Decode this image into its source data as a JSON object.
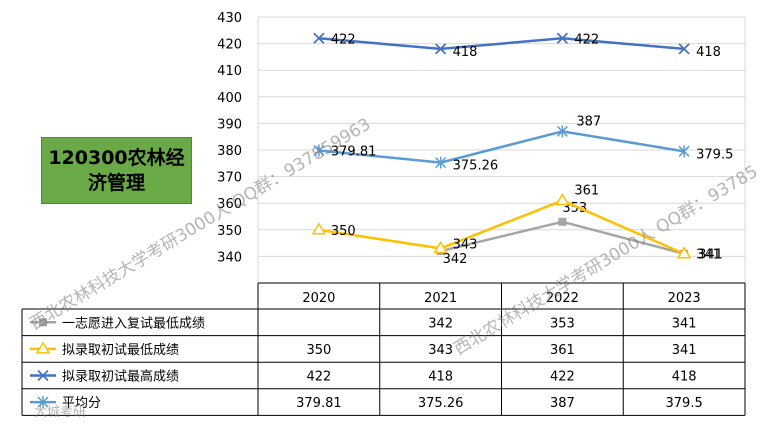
{
  "badge": {
    "text": "120300农林经\n济管理"
  },
  "watermark": {
    "line1": "西北农林科技大学考研3000人 QQ群：937859963",
    "line2": "西北农林科技大学考研3000人 QQ群：93785",
    "brand": "大城考研"
  },
  "chart_data": {
    "type": "line",
    "categories": [
      "2020",
      "2021",
      "2022",
      "2023"
    ],
    "ylim": [
      330,
      430
    ],
    "yticks": [
      340,
      350,
      360,
      370,
      380,
      390,
      400,
      410,
      420,
      430
    ],
    "grid": true,
    "legend": "table",
    "series": [
      {
        "name": "一志愿进入复试最低成绩",
        "values": [
          null,
          342,
          353,
          341
        ],
        "labels": [
          "",
          "342",
          "353",
          "341"
        ],
        "color": "#a5a5a5",
        "marker": "square"
      },
      {
        "name": "拟录取初试最低成绩",
        "values": [
          350,
          343,
          361,
          341
        ],
        "labels": [
          "350",
          "343",
          "361",
          "341"
        ],
        "color": "#ffc000",
        "marker": "triangle"
      },
      {
        "name": "拟录取初试最高成绩",
        "values": [
          422,
          418,
          422,
          418
        ],
        "labels": [
          "422",
          "418",
          "422",
          "418"
        ],
        "color": "#4472c4",
        "marker": "x"
      },
      {
        "name": "平均分",
        "values": [
          379.81,
          375.26,
          387,
          379.5
        ],
        "labels": [
          "379.81",
          "375.26",
          "387",
          "379.5"
        ],
        "color": "#5b9bd5",
        "marker": "star"
      }
    ]
  }
}
